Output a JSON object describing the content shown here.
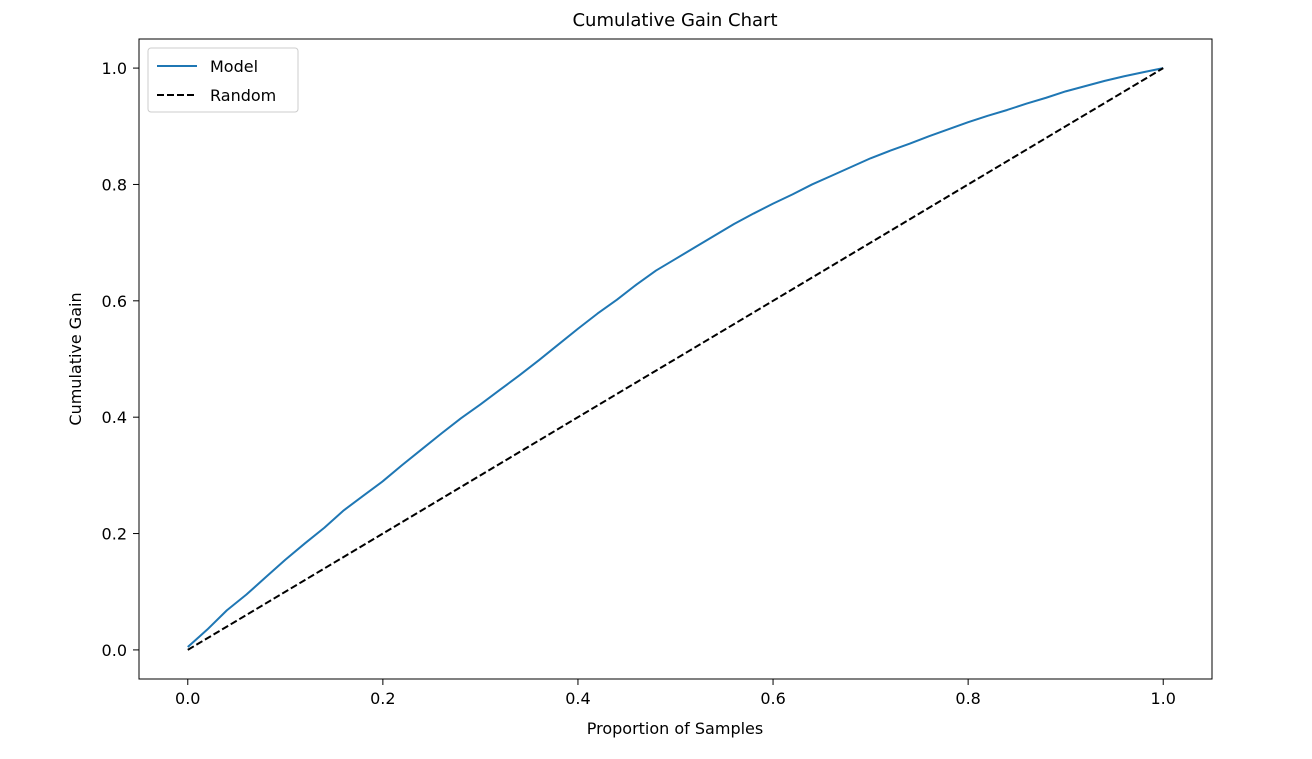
{
  "chart_data": {
    "type": "line",
    "title": "Cumulative Gain Chart",
    "xlabel": "Proportion of Samples",
    "ylabel": "Cumulative Gain",
    "xlim": [
      -0.05,
      1.05
    ],
    "ylim": [
      -0.05,
      1.05
    ],
    "xticks": [
      0.0,
      0.2,
      0.4,
      0.6,
      0.8,
      1.0
    ],
    "xtick_labels": [
      "0.0",
      "0.2",
      "0.4",
      "0.6",
      "0.8",
      "1.0"
    ],
    "yticks": [
      0.0,
      0.2,
      0.4,
      0.6,
      0.8,
      1.0
    ],
    "ytick_labels": [
      "0.0",
      "0.2",
      "0.4",
      "0.6",
      "0.8",
      "1.0"
    ],
    "grid": false,
    "legend_position": "upper left",
    "series": [
      {
        "name": "Model",
        "color": "#1f77b4",
        "linestyle": "solid",
        "x": [
          0.0,
          0.02,
          0.04,
          0.06,
          0.08,
          0.1,
          0.12,
          0.14,
          0.16,
          0.18,
          0.2,
          0.22,
          0.24,
          0.26,
          0.28,
          0.3,
          0.32,
          0.34,
          0.36,
          0.38,
          0.4,
          0.42,
          0.44,
          0.46,
          0.48,
          0.5,
          0.52,
          0.54,
          0.56,
          0.58,
          0.6,
          0.62,
          0.64,
          0.66,
          0.68,
          0.7,
          0.72,
          0.74,
          0.76,
          0.78,
          0.8,
          0.82,
          0.84,
          0.86,
          0.88,
          0.9,
          0.92,
          0.94,
          0.96,
          0.98,
          1.0
        ],
        "y": [
          0.005,
          0.035,
          0.068,
          0.095,
          0.125,
          0.155,
          0.183,
          0.21,
          0.24,
          0.265,
          0.29,
          0.318,
          0.345,
          0.372,
          0.398,
          0.422,
          0.447,
          0.472,
          0.498,
          0.525,
          0.552,
          0.578,
          0.602,
          0.628,
          0.652,
          0.672,
          0.692,
          0.712,
          0.732,
          0.75,
          0.767,
          0.783,
          0.8,
          0.815,
          0.83,
          0.845,
          0.858,
          0.87,
          0.883,
          0.895,
          0.907,
          0.918,
          0.928,
          0.939,
          0.949,
          0.96,
          0.969,
          0.978,
          0.986,
          0.993,
          1.0
        ]
      },
      {
        "name": "Random",
        "color": "#000000",
        "linestyle": "dashed",
        "x": [
          0.0,
          1.0
        ],
        "y": [
          0.0,
          1.0
        ]
      }
    ]
  }
}
